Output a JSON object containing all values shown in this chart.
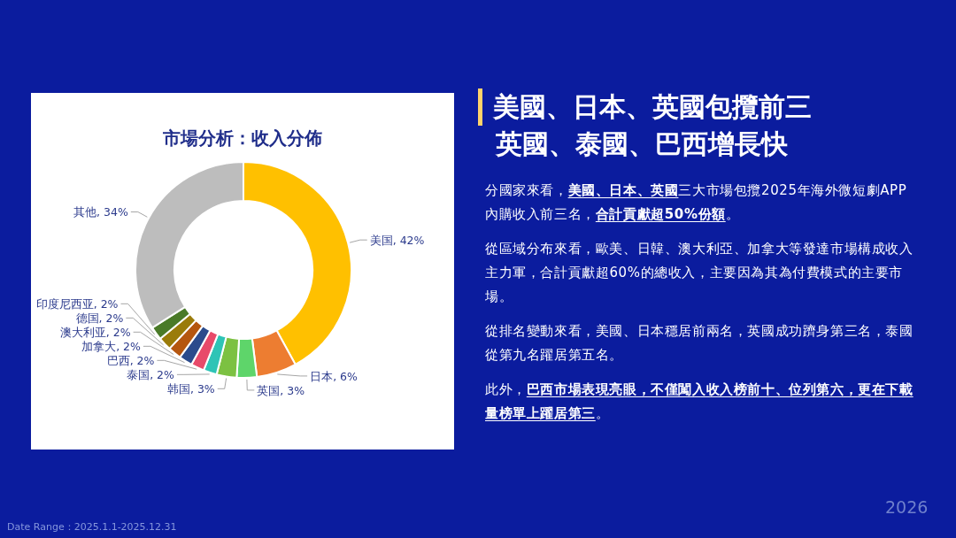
{
  "chart_data": [
    {
      "type": "donut",
      "title": "市場分析：收入分佈",
      "categories": [
        "美国",
        "日本",
        "英国",
        "韩国",
        "泰国",
        "巴西",
        "加拿大",
        "澳大利亚",
        "德国",
        "印度尼西亚",
        "其他"
      ],
      "values": [
        42,
        6,
        3,
        3,
        2,
        2,
        2,
        2,
        2,
        2,
        34
      ],
      "colors": [
        "#ffc000",
        "#ed7d31",
        "#5ed56a",
        "#7cc142",
        "#2ec4b6",
        "#e84a6a",
        "#2b4b8c",
        "#b5560f",
        "#9a7b0a",
        "#4a7a28",
        "#bdbdbd"
      ],
      "value_labels": [
        ", 42%",
        ", 6%",
        ", 3%",
        ", 3%",
        ", 2%",
        ", 2%",
        ", 2%",
        ", 2%",
        ", 2%",
        ", 2%",
        ", 34%"
      ],
      "legend": false
    },
    {
      "type": "other",
      "title": "美國、日本、英國包攬前三",
      "subtitle": "英國、泰國、巴西增長快",
      "annotations": [
        "分國家來看，**美國、日本、英國**三大市場包攬2025年海外微短劇APP內購收入前三名，**合計貢獻超50%份額**。",
        "從區域分布來看，歐美、日韓、澳大利亞、加拿大等發達市場構成收入主力軍，合計貢獻超60%的總收入，主要因為其為付費模式的主要市場。",
        "從排名變動來看，美國、日本穩居前兩名，英國成功躋身第三名，泰國從第九名躍居第五名。",
        "此外，**巴西市場表現亮眼，不僅闖入收入榜前十、位列第六，更在下載量榜單上躍居第三**。",
        "Date Range：2025.1.1-2025.12.31",
        "2026"
      ]
    }
  ]
}
